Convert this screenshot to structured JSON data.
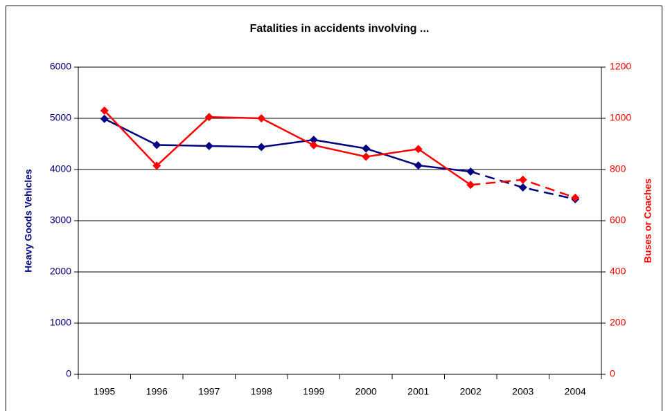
{
  "chart_data": {
    "type": "line",
    "title": "Fatalities in accidents involving ...",
    "categories": [
      "1995",
      "1996",
      "1997",
      "1998",
      "1999",
      "2000",
      "2001",
      "2002",
      "2003",
      "2004"
    ],
    "dashed_from": "2002",
    "series": [
      {
        "name": "Heavy Goods Vehicles",
        "color": "#000080",
        "axis": "y",
        "values": [
          4990,
          4480,
          4460,
          4440,
          4580,
          4410,
          4080,
          3960,
          3650,
          3420
        ]
      },
      {
        "name": "Buses or Coaches",
        "color": "#ff0000",
        "axis": "y2",
        "values": [
          1030,
          815,
          1005,
          1000,
          895,
          850,
          880,
          740,
          760,
          690
        ]
      }
    ],
    "ylim": [
      0,
      6000
    ],
    "yticks": [
      0,
      1000,
      2000,
      3000,
      4000,
      5000,
      6000
    ],
    "y2lim": [
      0,
      1200
    ],
    "y2ticks": [
      0,
      200,
      400,
      600,
      800,
      1000,
      1200
    ],
    "grid": true
  }
}
